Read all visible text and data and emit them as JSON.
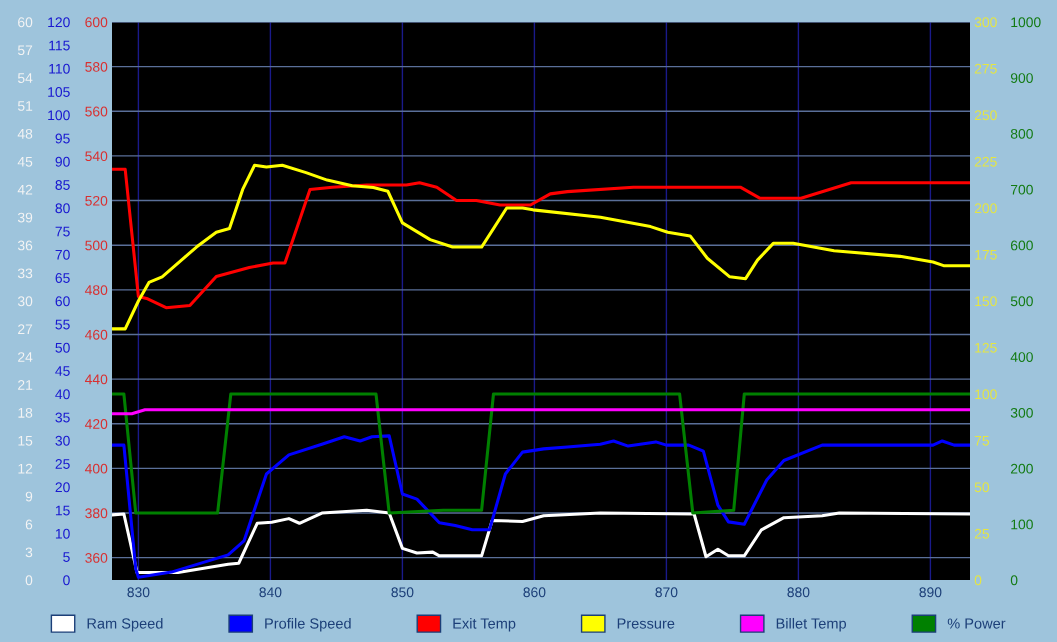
{
  "chart_data": [
    {
      "type": "line",
      "xlim": [
        828,
        893
      ],
      "xticks": [
        830,
        840,
        850,
        860,
        870,
        880,
        890
      ],
      "ylim": [
        0,
        60
      ],
      "yticks": [
        0,
        3,
        6,
        9,
        12,
        15,
        18,
        21,
        24,
        27,
        30,
        33,
        36,
        39,
        42,
        45,
        48,
        51,
        54,
        57,
        60
      ],
      "y2lim": [
        0,
        120
      ],
      "y2ticks": [
        0,
        5,
        10,
        15,
        20,
        25,
        30,
        35,
        40,
        45,
        50,
        55,
        60,
        65,
        70,
        75,
        80,
        85,
        90,
        95,
        100,
        105,
        110,
        115,
        120
      ],
      "y3lim": [
        350,
        600
      ],
      "y3ticks": [
        360,
        380,
        400,
        420,
        440,
        460,
        480,
        500,
        520,
        540,
        560,
        580,
        600
      ],
      "grid": true,
      "legend": "bottom",
      "series": [
        {
          "name": "Ram Speed",
          "color": "#ffffff",
          "x": [
            828,
            828.9,
            829.9,
            833,
            836.8,
            837.6,
            839,
            840.1,
            841.4,
            842.2,
            843.9,
            847.3,
            849,
            850,
            851.1,
            852.3,
            852.8,
            856,
            856.8,
            859.1,
            860.7,
            865,
            872.1,
            873,
            873.9,
            874.7,
            875.9,
            877.2,
            878.9,
            881.8,
            883.1,
            893
          ],
          "values": [
            7.0,
            7.1,
            0.8,
            0.8,
            1.7,
            1.8,
            6.1,
            6.2,
            6.6,
            6.1,
            7.2,
            7.5,
            7.2,
            3.4,
            2.9,
            3.0,
            2.6,
            2.6,
            6.4,
            6.3,
            6.9,
            7.2,
            7.1,
            2.5,
            3.3,
            2.6,
            2.6,
            5.4,
            6.7,
            6.9,
            7.2,
            7.1
          ]
        },
        {
          "name": "Profile Speed",
          "color": "#0000ff",
          "axis": "y2",
          "x": [
            828,
            828.9,
            829.8,
            830,
            832.5,
            836.8,
            838,
            839.7,
            841.4,
            843.9,
            845.6,
            846.8,
            847.7,
            849,
            850,
            851.1,
            852.8,
            854,
            855.3,
            856.6,
            857.8,
            859.1,
            860.7,
            862.5,
            865,
            866,
            867.1,
            869.2,
            870,
            871.7,
            872.8,
            873.9,
            874.7,
            875.9,
            877.6,
            878.9,
            881.8,
            890.2,
            890.9,
            891.8,
            893
          ],
          "values": [
            29,
            29,
            2.4,
            0.6,
            1.7,
            5.4,
            8.4,
            22.8,
            26.9,
            29.2,
            30.8,
            29.9,
            30.8,
            31,
            18.5,
            17.4,
            12.3,
            11.7,
            10.8,
            10.8,
            22.8,
            27.5,
            28.2,
            28.6,
            29.2,
            29.9,
            28.8,
            29.7,
            29,
            29,
            27.7,
            16.1,
            12.5,
            12,
            21.5,
            25.7,
            29,
            29,
            29.9,
            29,
            29
          ]
        },
        {
          "name": "Exit Temp",
          "color": "#ff0000",
          "axis": "y3",
          "x": [
            828,
            829,
            830,
            830.7,
            832.1,
            833.9,
            835.9,
            838.4,
            840.2,
            841.1,
            843,
            844.7,
            847.3,
            850.3,
            851.3,
            852.6,
            854.1,
            855.6,
            857.4,
            859.7,
            861.2,
            862.5,
            867.5,
            875.6,
            877.1,
            880.2,
            884,
            893
          ],
          "values": [
            534,
            534,
            477,
            476,
            472,
            473,
            486,
            490,
            492,
            492,
            525,
            526,
            527,
            527,
            528,
            526,
            520,
            520,
            518,
            518,
            523,
            524,
            526,
            526,
            521,
            521,
            528,
            528
          ]
        }
      ]
    },
    {
      "type": "line",
      "tick_labels": "y",
      "xlim": [
        828,
        893
      ],
      "ylim": [
        0,
        300
      ],
      "yticks": [
        0,
        25,
        50,
        75,
        100,
        125,
        150,
        175,
        200,
        225,
        250,
        275,
        300
      ],
      "y2lim": [
        0,
        1000
      ],
      "y2ticks": [
        0,
        100,
        200,
        300,
        400,
        500,
        600,
        700,
        800,
        900,
        1000
      ],
      "legend": "bottom",
      "series": [
        {
          "name": "Pressure",
          "color": "#ffff00",
          "x": [
            828,
            829,
            830,
            830.8,
            831.8,
            834.4,
            835.9,
            836.9,
            837.9,
            838.8,
            839.7,
            840.9,
            842.7,
            844.3,
            846.2,
            847.8,
            848.9,
            850,
            852.1,
            853.8,
            856,
            857.9,
            859.1,
            859.9,
            865,
            868.8,
            870.1,
            871.8,
            873.1,
            874.8,
            876,
            876.9,
            878.1,
            879.6,
            882.7,
            887.7,
            890.2,
            891,
            893
          ],
          "values": [
            135,
            135,
            150,
            160,
            163,
            179,
            187,
            189,
            210,
            223,
            222,
            223,
            219,
            215,
            212,
            211,
            209,
            192,
            183,
            179,
            179,
            200,
            200,
            199,
            195,
            190,
            187,
            185,
            173,
            163,
            162,
            172,
            181,
            181,
            177,
            174,
            171,
            169,
            169
          ]
        },
        {
          "name": "Billet Temp",
          "color": "#ff00ff",
          "axis": "y2",
          "x": [
            828,
            829.5,
            830.5,
            893
          ],
          "values": [
            298,
            298,
            305,
            305
          ]
        },
        {
          "name": "% Power",
          "color": "#008000",
          "x": [
            828,
            828.9,
            829.8,
            836,
            837,
            848,
            849,
            853.1,
            856,
            856.9,
            871,
            872,
            875.1,
            875.9,
            893
          ],
          "values": [
            100,
            100,
            36,
            36,
            100,
            100,
            36,
            37.5,
            37.5,
            100,
            100,
            36,
            37.5,
            100,
            100
          ]
        }
      ]
    }
  ]
}
